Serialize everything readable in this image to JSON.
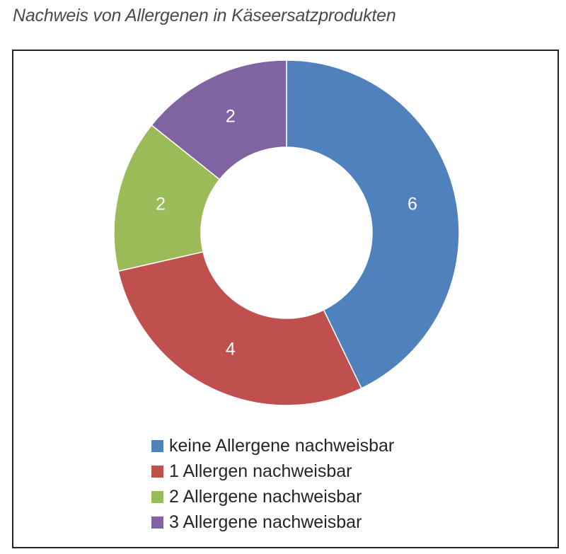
{
  "caption": "Nachweis von Allergenen in Käseersatzprodukten",
  "chart_data": {
    "type": "pie",
    "donut": true,
    "title": "",
    "categories": [
      "keine Allergene nachweisbar",
      "1 Allergen nachweisbar",
      "2 Allergene nachweisbar",
      "3 Allergene nachweisbar"
    ],
    "values": [
      6,
      4,
      2,
      2
    ],
    "data_labels": [
      "6",
      "4",
      "2",
      "2"
    ],
    "colors": [
      "#4f81bd",
      "#c0504d",
      "#9bbb59",
      "#8064a2"
    ],
    "legend_position": "bottom"
  }
}
